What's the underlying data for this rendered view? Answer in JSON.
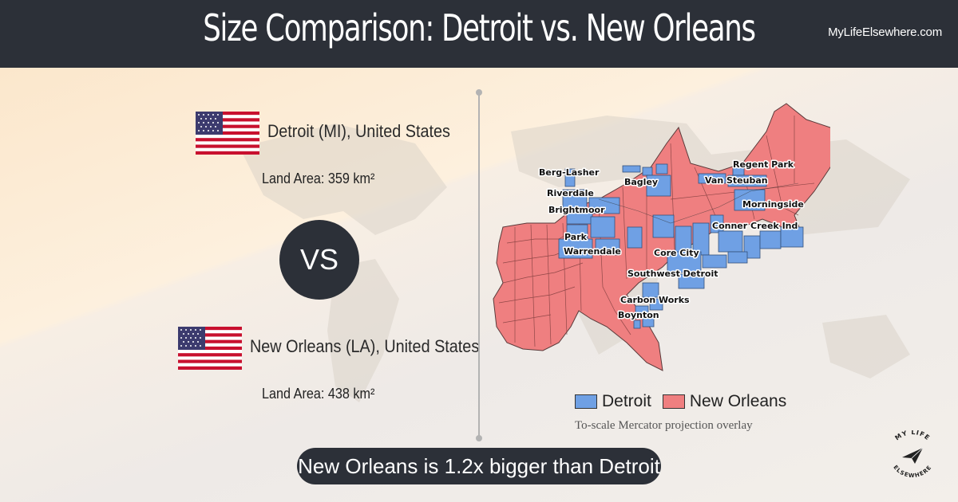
{
  "header": {
    "title": "Size Comparison: Detroit vs. New Orleans",
    "brand": "MyLifeElsewhere.com"
  },
  "city1": {
    "name": "Detroit (MI), United States",
    "land_area": "Land Area: 359 km²",
    "flag_icon": "us-flag-icon"
  },
  "city2": {
    "name": "New Orleans (LA), United States",
    "land_area": "Land Area: 438 km²",
    "flag_icon": "us-flag-icon"
  },
  "vs_label": "VS",
  "map": {
    "neighborhood_labels": [
      "Berg-Lasher",
      "Riverdale",
      "Brightmoor",
      "Park",
      "Warrendale",
      "Bagley",
      "Van Steuban",
      "Regent Park",
      "Morningside",
      "Conner Creek Ind",
      "Core City",
      "Southwest Detroit",
      "Carbon Works",
      "Boynton"
    ],
    "colors": {
      "detroit": "#6fa0e4",
      "new_orleans": "#ef7f80",
      "outline": "#555555"
    }
  },
  "legend": {
    "items": [
      {
        "label": "Detroit",
        "color": "#6fa0e4"
      },
      {
        "label": "New Orleans",
        "color": "#ef7f80"
      }
    ],
    "note": "To-scale Mercator projection overlay"
  },
  "summary": "New Orleans is 1.2x bigger than Detroit",
  "stamp": {
    "top": "MY LIFE",
    "bottom": "ELSEWHERE",
    "icon": "paper-plane-icon"
  },
  "theme": {
    "header_bg": "#2c3038",
    "accent_dark": "#2c3038"
  }
}
